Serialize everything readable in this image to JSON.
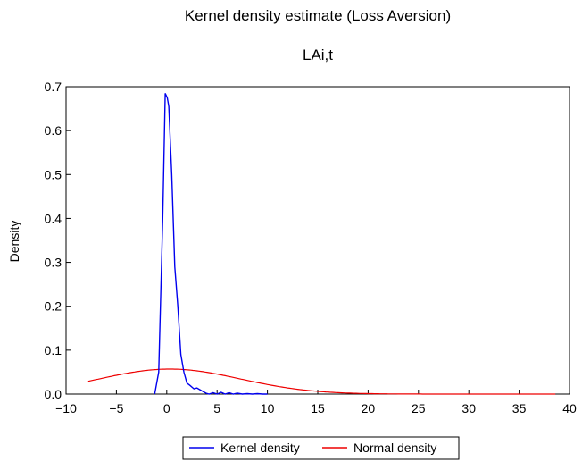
{
  "chart_data": {
    "type": "line",
    "title": "Kernel density estimate (Loss Aversion)",
    "subtitle": "LAi,t",
    "xlabel": "",
    "ylabel": "Density",
    "xlim": [
      -10,
      40
    ],
    "ylim": [
      0,
      0.7
    ],
    "x_ticks": [
      -10,
      -5,
      0,
      5,
      10,
      15,
      20,
      25,
      30,
      35,
      40
    ],
    "x_tick_labels": [
      "−10",
      "−5",
      "0",
      "5",
      "10",
      "15",
      "20",
      "25",
      "30",
      "35",
      "40"
    ],
    "y_ticks": [
      0,
      0.1,
      0.2,
      0.3,
      0.4,
      0.5,
      0.6,
      0.7
    ],
    "y_tick_labels": [
      "0.0",
      "0.1",
      "0.2",
      "0.3",
      "0.4",
      "0.5",
      "0.6",
      "0.7"
    ],
    "grid": false,
    "legend_position": "bottom",
    "series": [
      {
        "name": "Kernel density",
        "color": "#0000ee",
        "points": [
          [
            -1.2,
            0.0
          ],
          [
            -0.8,
            0.05
          ],
          [
            -0.4,
            0.4
          ],
          [
            -0.15,
            0.685
          ],
          [
            0.05,
            0.675
          ],
          [
            0.2,
            0.655
          ],
          [
            0.5,
            0.5
          ],
          [
            0.8,
            0.29
          ],
          [
            1.1,
            0.2
          ],
          [
            1.4,
            0.09
          ],
          [
            1.7,
            0.05
          ],
          [
            2.0,
            0.025
          ],
          [
            2.3,
            0.02
          ],
          [
            2.7,
            0.012
          ],
          [
            3.0,
            0.014
          ],
          [
            3.3,
            0.01
          ],
          [
            3.6,
            0.006
          ],
          [
            3.9,
            0.002
          ],
          [
            4.2,
            0.0
          ],
          [
            4.6,
            0.003
          ],
          [
            5.0,
            0.0
          ],
          [
            5.4,
            0.004
          ],
          [
            5.8,
            0.0
          ],
          [
            6.2,
            0.003
          ],
          [
            6.6,
            0.0
          ],
          [
            7.0,
            0.002
          ],
          [
            7.5,
            0.0
          ],
          [
            8.0,
            0.001
          ],
          [
            8.5,
            0.0
          ],
          [
            9.0,
            0.001
          ],
          [
            9.5,
            0.0
          ],
          [
            10.0,
            0.0
          ]
        ]
      },
      {
        "name": "Normal density",
        "color": "#ee0000",
        "mean": 0.3,
        "sd": 7.0,
        "x_range": [
          -7.8,
          38.6
        ]
      }
    ]
  }
}
